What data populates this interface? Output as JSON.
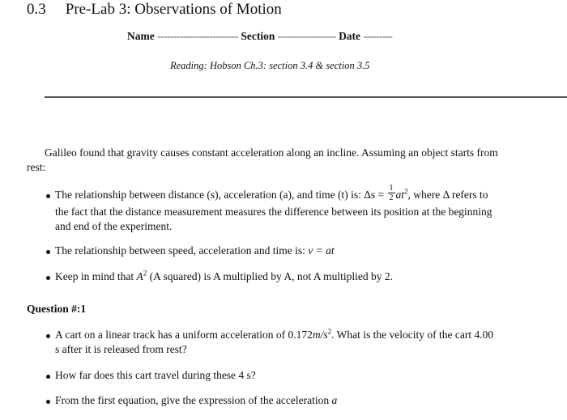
{
  "header": {
    "number": "0.3",
    "title": "Pre-Lab 3: Observations of Motion"
  },
  "form": {
    "name_label": "Name",
    "name_blank": "-------------------------",
    "section_label": "Section",
    "section_blank": "------------------",
    "date_label": "Date",
    "date_blank": "---------"
  },
  "reading": "Reading: Hobson Ch.3: section 3.4 & section 3.5",
  "intro": {
    "line1": "Galileo found that gravity causes constant acceleration along an incline. Assuming an object starts from",
    "line2": "rest:"
  },
  "bullets": {
    "b1_line1_pre": "The relationship between distance (s), acceleration (a), and time (t) is: Δs =",
    "b1_frac_num": "1",
    "b1_frac_den": "2",
    "b1_formula": "at",
    "b1_exp": "2",
    "b1_line1_post": ", where Δ refers to",
    "b1_line2": "the fact that the distance measurement measures the difference between its position at the beginning",
    "b1_line3": "and end of the experiment.",
    "b2": "The relationship between speed, acceleration and time is:",
    "b2_formula": "v = at",
    "b3_pre": "Keep in mind that",
    "b3_var": "A",
    "b3_exp": "2",
    "b3_post": "(A squared) is A multiplied by A, not A multiplied by 2."
  },
  "question": {
    "title": "Question #:1",
    "q1_line1_pre": "A cart on a linear track has a uniform acceleration of 0.172",
    "q1_unit": "m/s",
    "q1_unit_exp": "2",
    "q1_line1_post": ". What is the velocity of the cart 4.00",
    "q1_line2": "s after it is released from rest?",
    "q2": "How far does this cart travel during these 4 s?",
    "q3_pre": "From the first equation, give the expression of the acceleration",
    "q3_var": "a"
  }
}
